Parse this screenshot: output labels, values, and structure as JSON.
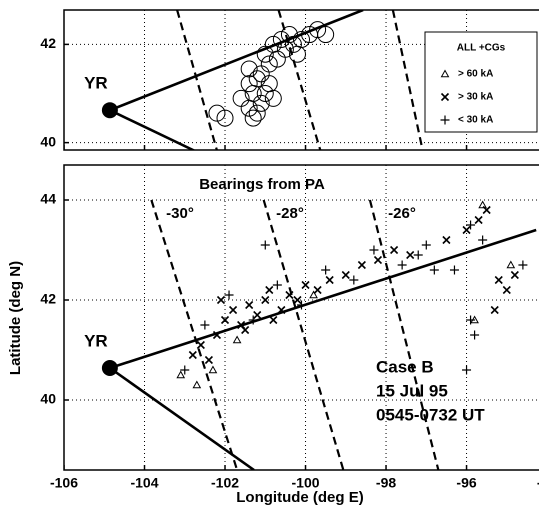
{
  "chart_data": [
    {
      "type": "scatter",
      "xlim": [
        -106,
        -94.2
      ],
      "ylim": [
        39.85,
        42.7
      ],
      "xticks": [
        -106,
        -104,
        -102,
        -100,
        -98,
        -96,
        -94
      ],
      "yticks": [
        40,
        42
      ],
      "grid": true,
      "station": {
        "label": "YR",
        "x": -104.86,
        "y": 40.66
      },
      "lines": [
        {
          "style": "solid",
          "x": [
            -104.86,
            -98.57
          ],
          "y": [
            40.66,
            42.7
          ]
        },
        {
          "style": "solid",
          "x": [
            -104.86,
            -102.77
          ],
          "y": [
            40.66,
            39.84
          ]
        },
        {
          "style": "dashed",
          "x": [
            -103.19,
            -102.2
          ],
          "y": [
            42.7,
            39.84
          ]
        },
        {
          "style": "dashed",
          "x": [
            -100.67,
            -99.63
          ],
          "y": [
            42.7,
            39.84
          ]
        },
        {
          "style": "dashed",
          "x": [
            -97.83,
            -97.09
          ],
          "y": [
            42.7,
            39.84
          ]
        }
      ],
      "series": [
        {
          "marker": "circle",
          "color": "#000",
          "x": [
            -102.2,
            -102,
            -101.6,
            -101.4,
            -101.3,
            -101.1,
            -101.4,
            -101.2,
            -101.4,
            -101.1,
            -100.9,
            -101.0,
            -101.2,
            -100.8,
            -100.9,
            -101.0,
            -100.8,
            -100.6,
            -100.5,
            -100.3,
            -100.1,
            -100.2,
            -99.9,
            -99.7,
            -99.5,
            -100.4,
            -101.3,
            -100.7
          ],
          "y": [
            40.6,
            40.5,
            40.9,
            40.7,
            41.0,
            40.8,
            41.2,
            41.3,
            41.5,
            41.4,
            41.2,
            41.0,
            40.6,
            40.9,
            41.6,
            41.8,
            42.0,
            42.1,
            41.9,
            42.0,
            42.1,
            41.8,
            42.2,
            42.3,
            42.2,
            42.2,
            40.5,
            41.7
          ]
        }
      ]
    },
    {
      "type": "scatter",
      "x_label": "Longitude (deg E)",
      "y_label": "Latitude (deg N)",
      "xlim": [
        -106,
        -94.2
      ],
      "ylim": [
        38.6,
        44.7
      ],
      "xticks": [
        -106,
        -104,
        -102,
        -100,
        -98,
        -96,
        -94
      ],
      "yticks": [
        40,
        42,
        44
      ],
      "grid": true,
      "station": {
        "label": "YR",
        "x": -104.86,
        "y": 40.64
      },
      "bearings_title": "Bearings from PA",
      "bearing_labels": [
        "-30°",
        "-28°",
        "-26°"
      ],
      "case_text": [
        "Case B",
        "15 Jul 95",
        "0545-0732 UT"
      ],
      "legend_title": "ALL +CGs",
      "lines": [
        {
          "style": "solid",
          "x": [
            -104.86,
            -94.27
          ],
          "y": [
            40.64,
            43.4
          ]
        },
        {
          "style": "solid",
          "x": [
            -104.86,
            -101.28
          ],
          "y": [
            40.64,
            38.6
          ]
        },
        {
          "style": "dashed",
          "x": [
            -103.83,
            -101.7
          ],
          "y": [
            44.0,
            38.6
          ]
        },
        {
          "style": "dashed",
          "x": [
            -101.04,
            -99.06
          ],
          "y": [
            44.0,
            38.6
          ]
        },
        {
          "style": "dashed",
          "x": [
            -98.4,
            -96.7
          ],
          "y": [
            44.0,
            38.6
          ]
        }
      ],
      "series": [
        {
          "name": "> 60 kA",
          "marker": "triangle",
          "color": "#000",
          "x": [
            -103.1,
            -102.7,
            -102.3,
            -101.7,
            -99.8,
            -95.6,
            -95.8,
            -94.9
          ],
          "y": [
            40.5,
            40.3,
            40.6,
            41.2,
            42.1,
            43.9,
            41.6,
            42.7
          ]
        },
        {
          "name": "> 30 kA",
          "marker": "x",
          "color": "#000",
          "x": [
            -102.8,
            -102.6,
            -102.4,
            -102.2,
            -102,
            -101.8,
            -101.6,
            -101.4,
            -101.2,
            -101,
            -100.8,
            -100.6,
            -100.4,
            -100.2,
            -100,
            -99.7,
            -99.4,
            -99,
            -98.6,
            -98.2,
            -97.8,
            -97.4,
            -96.5,
            -96,
            -95.7,
            -95.5,
            -95.2,
            -95,
            -94.8,
            -95.3,
            -102.1,
            -101.5,
            -100.9
          ],
          "y": [
            40.9,
            41.1,
            40.8,
            41.3,
            41.6,
            41.8,
            41.5,
            41.9,
            41.7,
            42.0,
            41.6,
            41.8,
            42.1,
            42.0,
            42.3,
            42.2,
            42.4,
            42.5,
            42.7,
            42.8,
            43.0,
            42.9,
            43.2,
            43.4,
            43.6,
            43.8,
            42.4,
            42.2,
            42.5,
            41.8,
            42.0,
            41.4,
            42.2
          ]
        },
        {
          "name": "< 30 kA",
          "marker": "plus",
          "color": "#000",
          "x": [
            -103,
            -102.5,
            -101.9,
            -101.3,
            -100.7,
            -100.1,
            -99.5,
            -98.8,
            -98.3,
            -97.6,
            -97,
            -96.8,
            -96.3,
            -95.9,
            -95.6,
            -95.9,
            -95.8,
            -94.6,
            -101,
            -97.2,
            -96
          ],
          "y": [
            40.6,
            41.5,
            42.1,
            41.6,
            42.3,
            41.9,
            42.6,
            42.4,
            43.0,
            42.7,
            43.1,
            42.6,
            42.6,
            43.5,
            43.2,
            41.6,
            41.3,
            42.7,
            43.1,
            42.9,
            40.6
          ]
        }
      ]
    }
  ]
}
